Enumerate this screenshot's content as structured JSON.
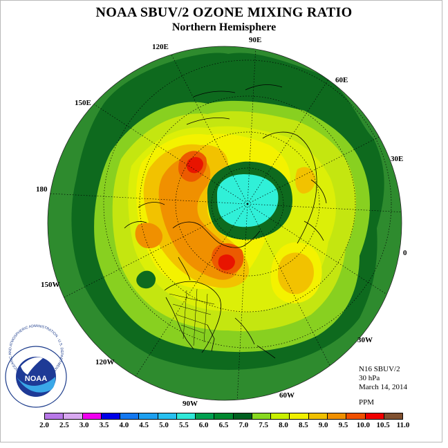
{
  "header": {
    "title": "NOAA SBUV/2 OZONE MIXING RATIO",
    "subtitle": "Northern Hemisphere"
  },
  "meridian_labels": [
    "90E",
    "60E",
    "30E",
    "0",
    "30W",
    "60W",
    "90W",
    "120W",
    "150W",
    "180",
    "150E",
    "120E"
  ],
  "info": {
    "instrument": "N16 SBUV/2",
    "level": "30 hPa",
    "date": "March 14, 2014",
    "units": "PPM"
  },
  "logo": {
    "text": "NOAA",
    "ring_text": "NATIONAL OCEANIC AND ATMOSPHERIC ADMINISTRATION · U.S. DEPARTMENT OF COMMERCE"
  },
  "legend": {
    "ticks": [
      "2.0",
      "2.5",
      "3.0",
      "3.5",
      "4.0",
      "4.5",
      "5.0",
      "5.5",
      "6.0",
      "6.5",
      "7.0",
      "7.5",
      "8.0",
      "8.5",
      "9.0",
      "9.5",
      "10.0",
      "10.5",
      "11.0"
    ],
    "colors": [
      "#b878e8",
      "#d8a8f0",
      "#f000f0",
      "#0000e8",
      "#1478f0",
      "#1ea0f0",
      "#28c0f0",
      "#30e8d8",
      "#00a050",
      "#008830",
      "#006020",
      "#88d820",
      "#c8f000",
      "#f0f000",
      "#f0c000",
      "#f09000",
      "#f05000",
      "#f00000",
      "#805030"
    ]
  },
  "colors": {
    "ring": "#2e8b2e",
    "dark_green": "#0e6a1e",
    "mid_green": "#5cb832",
    "light_green": "#88d020",
    "yellow_green": "#c4e610",
    "yellow": "#f4f200",
    "orange_yellow": "#f2c200",
    "orange": "#f09000",
    "red_orange": "#ec5a00",
    "red": "#e81400",
    "cyan": "#30f0d8"
  }
}
